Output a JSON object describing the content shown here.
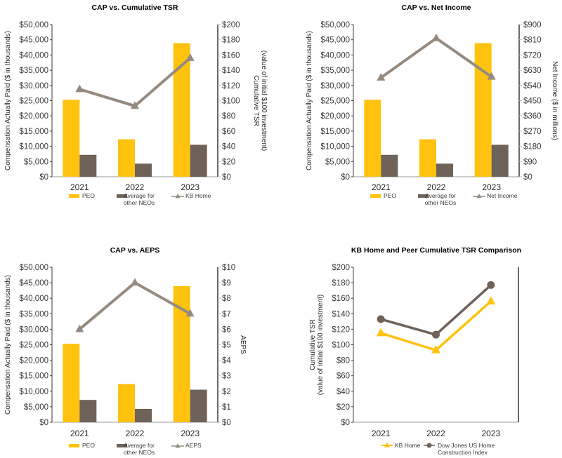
{
  "colors": {
    "peo": "#FFC20E",
    "neo": "#6E6259",
    "line_gray": "#958A80",
    "kb_yellow": "#FFC20E",
    "dj_brown": "#6E6259",
    "axis": "#3a3a3a"
  },
  "chart_data": [
    {
      "type": "bar",
      "id": "cap-vs-tsr",
      "title": "CAP vs. Cumulative TSR",
      "categories": [
        "2021",
        "2022",
        "2023"
      ],
      "series": [
        {
          "name": "PEO",
          "axis": "left",
          "kind": "bar",
          "values": [
            25300,
            12300,
            43900
          ]
        },
        {
          "name": "Average for other NEOs",
          "axis": "left",
          "kind": "bar",
          "values": [
            7200,
            4300,
            10500
          ]
        },
        {
          "name": "KB Home",
          "axis": "right",
          "kind": "line",
          "marker": "triangle",
          "values": [
            115,
            93,
            156
          ]
        }
      ],
      "ylabel": "Compensation Actually Paid ($ in thousands)",
      "ylim": [
        0,
        50000
      ],
      "yticks": [
        "$0",
        "$5,000",
        "$10,000",
        "$15,000",
        "$20,000",
        "$25,000",
        "$30,000",
        "$35,000",
        "$40,000",
        "$45,000",
        "$50,000"
      ],
      "y2label": [
        "Cumulative TSR",
        "(value of initial $100 investment)"
      ],
      "y2lim": [
        0,
        200
      ],
      "y2ticks": [
        "$0",
        "$20",
        "$40",
        "$60",
        "$80",
        "$100",
        "$120",
        "$140",
        "$160",
        "$180",
        "$200"
      ],
      "legend": [
        {
          "label": [
            "PEO"
          ],
          "swatch": "bar"
        },
        {
          "label": [
            "Average for",
            "other NEOs"
          ],
          "swatch": "bar"
        },
        {
          "label": [
            "KB Home"
          ],
          "swatch": "line-triangle"
        }
      ],
      "legend_position": "bottom",
      "grid": false
    },
    {
      "type": "bar",
      "id": "cap-vs-net-income",
      "title": "CAP vs. Net Income",
      "categories": [
        "2021",
        "2022",
        "2023"
      ],
      "series": [
        {
          "name": "PEO",
          "axis": "left",
          "kind": "bar",
          "values": [
            25300,
            12300,
            43900
          ]
        },
        {
          "name": "Average for other NEOs",
          "axis": "left",
          "kind": "bar",
          "values": [
            7200,
            4300,
            10500
          ]
        },
        {
          "name": "Net Income",
          "axis": "right",
          "kind": "line",
          "marker": "triangle",
          "values": [
            586,
            819,
            591
          ]
        }
      ],
      "ylabel": "Compensation Actually Paid ($ in thousands)",
      "ylim": [
        0,
        50000
      ],
      "yticks": [
        "$0",
        "$5,000",
        "$10,000",
        "$15,000",
        "$20,000",
        "$25,000",
        "$30,000",
        "$35,000",
        "$40,000",
        "$45,000",
        "$50,000"
      ],
      "y2label": [
        "Net Income ($ in millions)"
      ],
      "y2lim": [
        0,
        900
      ],
      "y2ticks": [
        "$0",
        "$90",
        "$180",
        "$270",
        "$360",
        "$450",
        "$540",
        "$630",
        "$720",
        "$810",
        "$900"
      ],
      "legend": [
        {
          "label": [
            "PEO"
          ],
          "swatch": "bar"
        },
        {
          "label": [
            "Average for",
            "other NEOs"
          ],
          "swatch": "bar"
        },
        {
          "label": [
            "Net Income"
          ],
          "swatch": "line-triangle"
        }
      ],
      "legend_position": "bottom",
      "grid": false
    },
    {
      "type": "bar",
      "id": "cap-vs-aeps",
      "title": "CAP vs. AEPS",
      "categories": [
        "2021",
        "2022",
        "2023"
      ],
      "series": [
        {
          "name": "PEO",
          "axis": "left",
          "kind": "bar",
          "values": [
            25300,
            12300,
            43900
          ]
        },
        {
          "name": "Average for other NEOs",
          "axis": "left",
          "kind": "bar",
          "values": [
            7200,
            4300,
            10500
          ]
        },
        {
          "name": "AEPS",
          "axis": "right",
          "kind": "line",
          "marker": "triangle",
          "values": [
            6.0,
            9.0,
            7.0
          ]
        }
      ],
      "ylabel": "Compensation Actually Paid ($ in thousands)",
      "ylim": [
        0,
        50000
      ],
      "yticks": [
        "$0",
        "$5,000",
        "$10,000",
        "$15,000",
        "$20,000",
        "$25,000",
        "$30,000",
        "$35,000",
        "$40,000",
        "$45,000",
        "$50,000"
      ],
      "y2label": [
        "AEPS"
      ],
      "y2lim": [
        0,
        10
      ],
      "y2ticks": [
        "$0",
        "$1",
        "$2",
        "$3",
        "$4",
        "$5",
        "$6",
        "$7",
        "$8",
        "$9",
        "$10"
      ],
      "legend": [
        {
          "label": [
            "PEO"
          ],
          "swatch": "bar"
        },
        {
          "label": [
            "Average for",
            "other NEOs"
          ],
          "swatch": "bar"
        },
        {
          "label": [
            "AEPS"
          ],
          "swatch": "line-triangle"
        }
      ],
      "legend_position": "bottom",
      "grid": false
    },
    {
      "type": "line",
      "id": "tsr-comparison",
      "title": "KB Home and Peer Cumulative TSR Comparison",
      "categories": [
        "2021",
        "2022",
        "2023"
      ],
      "series": [
        {
          "name": "KB Home",
          "marker": "triangle",
          "values": [
            115,
            93,
            156
          ]
        },
        {
          "name": "Dow Jones US Home Construction Index",
          "marker": "circle",
          "values": [
            133,
            113,
            177
          ]
        }
      ],
      "ylabel": [
        "Cumulative TSR",
        "(value of initial $100 investment)"
      ],
      "ylim": [
        0,
        200
      ],
      "yticks": [
        "$0",
        "$20",
        "$40",
        "$60",
        "$80",
        "$100",
        "$120",
        "$140",
        "$160",
        "$180",
        "$200"
      ],
      "legend": [
        {
          "label": [
            "KB Home"
          ],
          "swatch": "line-triangle"
        },
        {
          "label": [
            "Dow Jones US Home",
            "Construction Index"
          ],
          "swatch": "line-circle"
        }
      ],
      "legend_position": "bottom",
      "grid": false
    }
  ]
}
